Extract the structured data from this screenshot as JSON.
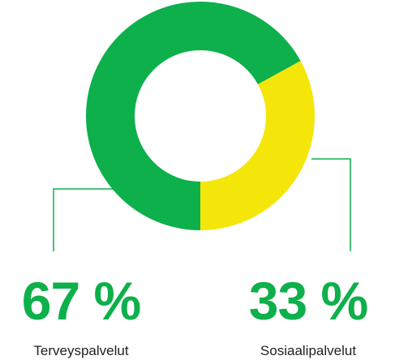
{
  "chart_data": {
    "type": "pie",
    "donut": true,
    "categories": [
      "Terveyspalvelut",
      "Sosiaalipalvelut"
    ],
    "values": [
      67,
      33
    ],
    "value_labels": [
      "67 %",
      "33 %"
    ],
    "colors": [
      "#0db04b",
      "#f5e60a"
    ]
  }
}
